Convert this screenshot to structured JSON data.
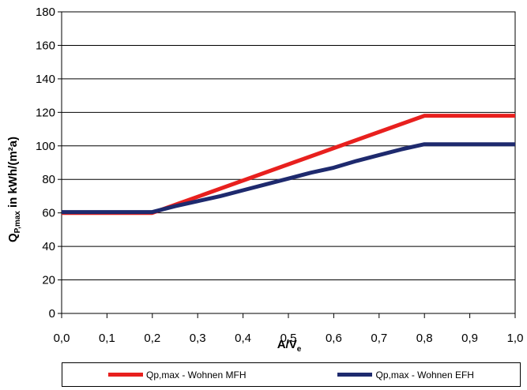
{
  "chart_data": {
    "type": "line",
    "xlabel": "A/V",
    "xlabel_sub": "e",
    "ylabel": "Q",
    "ylabel_sub": "P,max",
    "ylabel_rest": " in kWh/(m²a)",
    "xlim": [
      0,
      1
    ],
    "ylim": [
      0,
      180
    ],
    "x_ticks": [
      "0,0",
      "0,1",
      "0,2",
      "0,3",
      "0,4",
      "0,5",
      "0,6",
      "0,7",
      "0,8",
      "0,9",
      "1,0"
    ],
    "x_tick_values": [
      0,
      0.1,
      0.2,
      0.3,
      0.4,
      0.5,
      0.6,
      0.7,
      0.8,
      0.9,
      1.0
    ],
    "y_ticks": [
      "0",
      "20",
      "40",
      "60",
      "80",
      "100",
      "120",
      "140",
      "160",
      "180"
    ],
    "y_tick_values": [
      0,
      20,
      40,
      60,
      80,
      100,
      120,
      140,
      160,
      180
    ],
    "grid": "horizontal",
    "legend_position": "bottom",
    "series": [
      {
        "name": "Qp,max - Wohnen MFH",
        "color": "#e8201e",
        "x": [
          0,
          0.2,
          0.8,
          1.0
        ],
        "y": [
          60,
          60,
          118,
          118
        ]
      },
      {
        "name": "Qp,max - Wohnen EFH",
        "color": "#1e2a6e",
        "x": [
          0,
          0.2,
          0.25,
          0.3,
          0.35,
          0.4,
          0.45,
          0.5,
          0.55,
          0.6,
          0.65,
          0.7,
          0.75,
          0.8,
          1.0
        ],
        "y": [
          60.5,
          60.5,
          64,
          67,
          70,
          73.5,
          77,
          80.5,
          84,
          87,
          91,
          94.5,
          98,
          101,
          101
        ]
      }
    ]
  }
}
